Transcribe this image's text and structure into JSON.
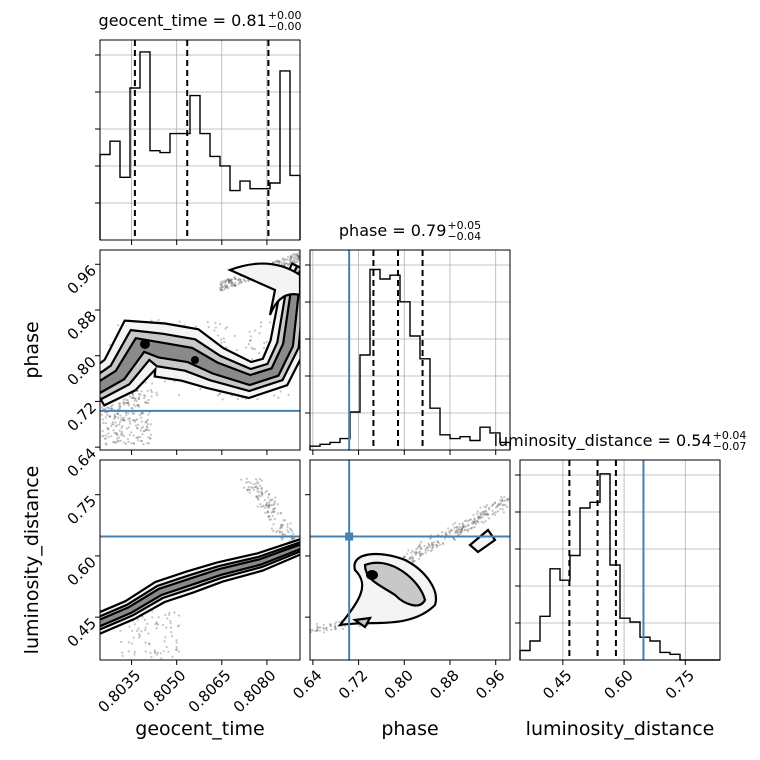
{
  "chart_data": {
    "type": "corner",
    "truth_color": "#4682b4",
    "parameters": [
      {
        "name": "geocent_time",
        "xlabel": "geocent_time",
        "range": [
          0.80245,
          0.8091
        ],
        "ticks": [
          0.8035,
          0.805,
          0.8065,
          0.808
        ],
        "tick_labels": [
          "0.8035",
          "0.8050",
          "0.8065",
          "0.8080"
        ],
        "title": {
          "main": "geocent_time = 0.81",
          "sup": "+0.00",
          "sub": "−0.00"
        },
        "quantiles": [
          0.80361,
          0.80535,
          0.80805
        ],
        "truth": null,
        "hist": [
          0.45,
          0.52,
          0.33,
          0.8,
          0.99,
          0.47,
          0.46,
          0.56,
          0.56,
          0.76,
          0.56,
          0.44,
          0.39,
          0.26,
          0.31,
          0.27,
          0.27,
          0.3,
          0.89,
          0.34
        ]
      },
      {
        "name": "phase",
        "xlabel": "phase",
        "ylabel": "phase",
        "range": [
          0.635,
          0.985
        ],
        "ticks": [
          0.64,
          0.72,
          0.8,
          0.88,
          0.96
        ],
        "tick_labels": [
          "0.64",
          "0.72",
          "0.80",
          "0.88",
          "0.96"
        ],
        "title": {
          "main": "phase = 0.79",
          "sup": "+0.05",
          "sub": "−0.04"
        },
        "quantiles": [
          0.746,
          0.789,
          0.832
        ],
        "truth": 0.7035,
        "hist": [
          0.02,
          0.03,
          0.04,
          0.06,
          0.2,
          0.5,
          0.95,
          0.9,
          0.92,
          0.78,
          0.6,
          0.48,
          0.22,
          0.08,
          0.06,
          0.07,
          0.05,
          0.12,
          0.09,
          0.04
        ]
      },
      {
        "name": "luminosity_distance",
        "xlabel": "luminosity_distance",
        "ylabel": "luminosity_distance",
        "range": [
          0.345,
          0.835
        ],
        "ticks": [
          0.45,
          0.6,
          0.75
        ],
        "tick_labels": [
          "0.45",
          "0.60",
          "0.75"
        ],
        "title": {
          "main": "luminosity_distance = 0.54",
          "sup": "+0.04",
          "sub": "−0.07"
        },
        "quantiles": [
          0.466,
          0.535,
          0.58
        ],
        "truth": 0.6475,
        "hist": [
          0.05,
          0.1,
          0.23,
          0.48,
          0.42,
          0.55,
          0.8,
          0.83,
          0.98,
          0.5,
          0.22,
          0.2,
          0.12,
          0.1,
          0.04,
          0.03,
          0.0,
          0.0,
          0.0,
          0.0
        ]
      }
    ],
    "ytick_labels_phase": [
      "0.64",
      "0.72",
      "0.80",
      "0.88",
      "0.96"
    ],
    "ytick_labels_lumdist": [
      "0.45",
      "0.60",
      "0.75"
    ]
  }
}
